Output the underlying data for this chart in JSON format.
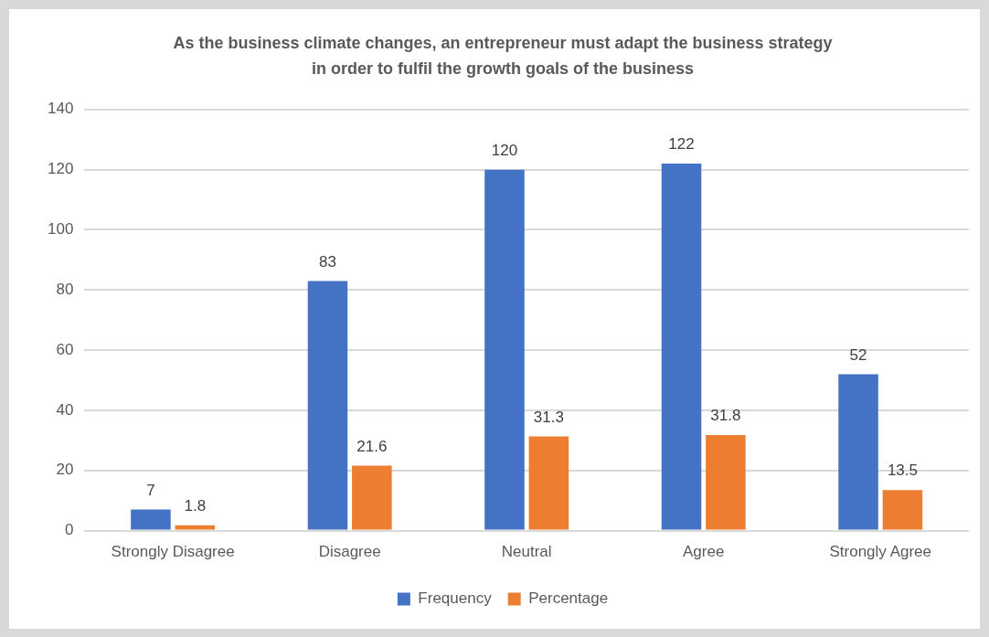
{
  "chart_data": {
    "type": "bar",
    "title": "As the business climate changes, an entrepreneur must adapt the business strategy in order to fulfil the growth goals of the business",
    "categories": [
      "Strongly Disagree",
      "Disagree",
      "Neutral",
      "Agree",
      "Strongly Agree"
    ],
    "series": [
      {
        "name": "Frequency",
        "color": "#4472c4",
        "values": [
          7,
          83,
          120,
          122,
          52
        ]
      },
      {
        "name": "Percentage",
        "color": "#ed7d31",
        "values": [
          1.8,
          21.6,
          31.3,
          31.8,
          13.5
        ]
      }
    ],
    "ylim": [
      0,
      140
    ],
    "yticks": [
      0,
      20,
      40,
      60,
      80,
      100,
      120,
      140
    ],
    "grid": "y",
    "legend": "bottom",
    "data_labels": true
  }
}
